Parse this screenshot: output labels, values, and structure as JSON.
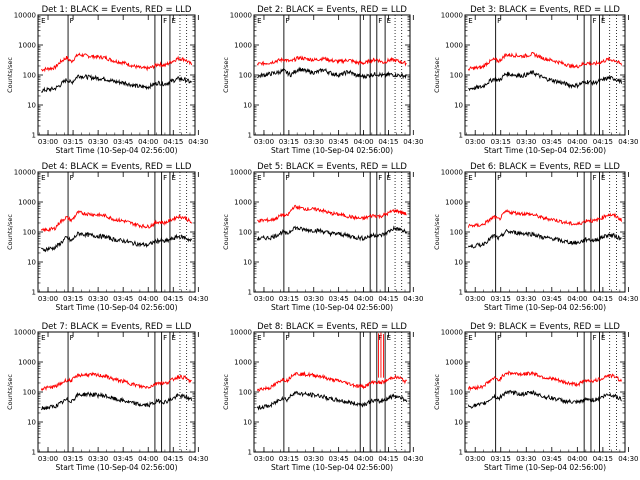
{
  "x_tick_labels": [
    "03:00",
    "03:15",
    "03:30",
    "03:45",
    "04:00",
    "04:15",
    "04:30"
  ],
  "y_tick_labels": [
    "1",
    "10",
    "100",
    "1000",
    "10000"
  ],
  "xlabel": "Start Time (10-Sep-04 02:56:00)",
  "ylabel": "Counts/sec",
  "colors": {
    "events": "#000000",
    "lld": "#ff0000"
  },
  "chart_data": [
    {
      "type": "line",
      "title": "Det 1: BLACK = Events, RED = LLD",
      "xlim_min": [
        -2,
        92
      ],
      "ylim": [
        1,
        10000
      ],
      "yscale": "log",
      "events_series": {
        "x": [
          0,
          8,
          11,
          15,
          18,
          22,
          28,
          32,
          38,
          44,
          50,
          55,
          60,
          64,
          67,
          70,
          74,
          78,
          82,
          86,
          90
        ],
        "y": [
          30,
          35,
          45,
          70,
          55,
          95,
          85,
          80,
          75,
          60,
          55,
          45,
          40,
          40,
          48,
          55,
          50,
          62,
          75,
          70,
          55
        ]
      },
      "lld_series": {
        "x": [
          0,
          8,
          11,
          15,
          18,
          22,
          28,
          32,
          38,
          44,
          50,
          55,
          60,
          64,
          67,
          70,
          74,
          78,
          82,
          86,
          90
        ],
        "y": [
          150,
          175,
          260,
          380,
          280,
          480,
          430,
          410,
          380,
          290,
          250,
          200,
          170,
          165,
          190,
          230,
          210,
          280,
          360,
          330,
          220
        ]
      },
      "vlines_solid": [
        16,
        68,
        72,
        77
      ],
      "vlines_dotted": [
        83,
        87
      ],
      "markers": [
        [
          "E",
          -1
        ],
        [
          "F",
          16
        ],
        [
          "F",
          72
        ],
        [
          "E",
          77
        ]
      ]
    },
    {
      "type": "line",
      "title": "Det 2: BLACK = Events, RED = LLD",
      "xlim_min": [
        -2,
        92
      ],
      "ylim": [
        1,
        10000
      ],
      "yscale": "log",
      "events_series": {
        "x": [
          0,
          8,
          12,
          16,
          20,
          25,
          30,
          35,
          40,
          45,
          50,
          55,
          60,
          65,
          68,
          72,
          76,
          80,
          84,
          88,
          90
        ],
        "y": [
          90,
          110,
          120,
          140,
          100,
          160,
          130,
          120,
          150,
          110,
          100,
          130,
          95,
          90,
          100,
          110,
          95,
          105,
          100,
          95,
          90
        ]
      },
      "lld_series": {
        "x": [
          0,
          8,
          12,
          16,
          20,
          25,
          30,
          35,
          40,
          45,
          50,
          55,
          60,
          65,
          68,
          72,
          76,
          80,
          84,
          88,
          90
        ],
        "y": [
          230,
          260,
          300,
          330,
          280,
          380,
          340,
          320,
          360,
          300,
          280,
          320,
          260,
          250,
          300,
          330,
          260,
          320,
          300,
          260,
          240
        ]
      },
      "vlines_solid": [
        16,
        62,
        68,
        72,
        77
      ],
      "vlines_dotted": [
        83,
        87
      ],
      "markers": [
        [
          "E",
          -1
        ],
        [
          "F",
          16
        ],
        [
          "F",
          72
        ],
        [
          "E",
          77
        ]
      ]
    },
    {
      "type": "line",
      "title": "Det 3: BLACK = Events, RED = LLD",
      "xlim_min": [
        -2,
        92
      ],
      "ylim": [
        1,
        10000
      ],
      "yscale": "log",
      "events_series": {
        "x": [
          0,
          8,
          11,
          15,
          18,
          22,
          28,
          32,
          38,
          44,
          50,
          55,
          60,
          64,
          67,
          70,
          74,
          78,
          82,
          86,
          90
        ],
        "y": [
          35,
          40,
          55,
          75,
          65,
          110,
          100,
          95,
          120,
          80,
          65,
          55,
          45,
          45,
          55,
          60,
          55,
          65,
          80,
          75,
          60
        ]
      },
      "lld_series": {
        "x": [
          0,
          8,
          11,
          15,
          18,
          22,
          28,
          32,
          38,
          44,
          50,
          55,
          60,
          64,
          67,
          70,
          74,
          78,
          82,
          86,
          90
        ],
        "y": [
          160,
          180,
          250,
          330,
          290,
          470,
          450,
          420,
          500,
          360,
          300,
          250,
          200,
          190,
          230,
          250,
          230,
          270,
          330,
          310,
          220
        ]
      },
      "vlines_solid": [
        16,
        68,
        72,
        77
      ],
      "vlines_dotted": [
        83,
        87
      ],
      "markers": [
        [
          "E",
          -1
        ],
        [
          "F",
          16
        ],
        [
          "F",
          72
        ],
        [
          "E",
          77
        ]
      ]
    },
    {
      "type": "line",
      "title": "Det 4: BLACK = Events, RED = LLD",
      "xlim_min": [
        -2,
        92
      ],
      "ylim": [
        1,
        10000
      ],
      "yscale": "log",
      "events_series": {
        "x": [
          0,
          8,
          11,
          15,
          18,
          22,
          28,
          32,
          38,
          44,
          50,
          55,
          60,
          64,
          67,
          70,
          74,
          78,
          82,
          86,
          90
        ],
        "y": [
          25,
          30,
          40,
          65,
          50,
          90,
          80,
          75,
          70,
          55,
          50,
          42,
          38,
          37,
          45,
          52,
          48,
          58,
          70,
          65,
          50
        ]
      },
      "lld_series": {
        "x": [
          0,
          8,
          11,
          15,
          18,
          22,
          28,
          32,
          38,
          44,
          50,
          55,
          60,
          64,
          67,
          70,
          74,
          78,
          82,
          86,
          90
        ],
        "y": [
          110,
          130,
          210,
          310,
          240,
          450,
          400,
          380,
          350,
          260,
          230,
          190,
          160,
          150,
          180,
          220,
          200,
          260,
          330,
          300,
          200
        ]
      },
      "vlines_solid": [
        16,
        68,
        72,
        77
      ],
      "vlines_dotted": [
        83,
        87
      ],
      "markers": [
        [
          "E",
          -1
        ],
        [
          "F",
          16
        ],
        [
          "F",
          72
        ],
        [
          "E",
          77
        ]
      ]
    },
    {
      "type": "line",
      "title": "Det 5: BLACK = Events, RED = LLD",
      "xlim_min": [
        -2,
        92
      ],
      "ylim": [
        1,
        10000
      ],
      "yscale": "log",
      "events_series": {
        "x": [
          0,
          8,
          11,
          15,
          18,
          22,
          28,
          32,
          38,
          44,
          50,
          55,
          60,
          64,
          67,
          70,
          74,
          78,
          82,
          86,
          90
        ],
        "y": [
          60,
          65,
          75,
          100,
          85,
          140,
          120,
          115,
          110,
          90,
          85,
          75,
          65,
          62,
          70,
          80,
          75,
          95,
          130,
          120,
          95
        ]
      },
      "lld_series": {
        "x": [
          0,
          8,
          11,
          15,
          18,
          22,
          28,
          32,
          38,
          44,
          50,
          55,
          60,
          64,
          67,
          70,
          74,
          78,
          82,
          86,
          90
        ],
        "y": [
          240,
          250,
          280,
          380,
          340,
          700,
          600,
          580,
          550,
          420,
          380,
          330,
          290,
          280,
          320,
          360,
          330,
          400,
          520,
          480,
          380
        ]
      },
      "vlines_solid": [
        16,
        68,
        72,
        77
      ],
      "vlines_dotted": [
        83,
        87
      ],
      "markers": [
        [
          "E",
          -1
        ],
        [
          "F",
          16
        ],
        [
          "F",
          72
        ],
        [
          "E",
          77
        ]
      ]
    },
    {
      "type": "line",
      "title": "Det 6: BLACK = Events, RED = LLD",
      "xlim_min": [
        -2,
        92
      ],
      "ylim": [
        1,
        10000
      ],
      "yscale": "log",
      "events_series": {
        "x": [
          0,
          8,
          11,
          15,
          18,
          22,
          28,
          32,
          38,
          44,
          50,
          55,
          60,
          64,
          67,
          70,
          74,
          78,
          82,
          86,
          90
        ],
        "y": [
          32,
          38,
          50,
          75,
          60,
          105,
          95,
          90,
          85,
          65,
          60,
          50,
          45,
          43,
          50,
          58,
          52,
          65,
          80,
          75,
          58
        ]
      },
      "lld_series": {
        "x": [
          0,
          8,
          11,
          15,
          18,
          22,
          28,
          32,
          38,
          44,
          50,
          55,
          60,
          64,
          67,
          70,
          74,
          78,
          82,
          86,
          90
        ],
        "y": [
          160,
          170,
          220,
          320,
          260,
          480,
          430,
          410,
          380,
          290,
          260,
          220,
          190,
          180,
          210,
          250,
          230,
          290,
          380,
          350,
          250
        ]
      },
      "vlines_solid": [
        16,
        68,
        72,
        77
      ],
      "vlines_dotted": [
        83,
        87
      ],
      "markers": [
        [
          "E",
          -1
        ],
        [
          "F",
          16
        ],
        [
          "F",
          72
        ],
        [
          "E",
          77
        ]
      ]
    },
    {
      "type": "line",
      "title": "Det 7: BLACK = Events, RED = LLD",
      "xlim_min": [
        -2,
        92
      ],
      "ylim": [
        1,
        10000
      ],
      "yscale": "log",
      "events_series": {
        "x": [
          0,
          8,
          11,
          15,
          18,
          22,
          28,
          32,
          38,
          44,
          50,
          55,
          60,
          64,
          67,
          70,
          74,
          78,
          82,
          86,
          90
        ],
        "y": [
          28,
          33,
          40,
          55,
          50,
          80,
          85,
          80,
          75,
          58,
          50,
          42,
          37,
          36,
          42,
          50,
          46,
          58,
          75,
          70,
          55
        ]
      },
      "lld_series": {
        "x": [
          0,
          8,
          11,
          15,
          18,
          22,
          28,
          32,
          38,
          44,
          50,
          55,
          60,
          64,
          67,
          70,
          74,
          78,
          82,
          86,
          90
        ],
        "y": [
          130,
          150,
          180,
          250,
          240,
          360,
          380,
          370,
          340,
          260,
          220,
          180,
          150,
          145,
          170,
          210,
          190,
          250,
          330,
          300,
          210
        ]
      },
      "vlines_solid": [
        16,
        68,
        72,
        77
      ],
      "vlines_dotted": [
        83,
        87
      ],
      "markers": [
        [
          "E",
          -1
        ],
        [
          "F",
          16
        ],
        [
          "F",
          72
        ],
        [
          "E",
          77
        ]
      ]
    },
    {
      "type": "line",
      "title": "Det 8: BLACK = Events, RED = LLD",
      "xlim_min": [
        -2,
        92
      ],
      "ylim": [
        1,
        10000
      ],
      "yscale": "log",
      "events_series": {
        "x": [
          0,
          8,
          11,
          15,
          18,
          22,
          28,
          32,
          38,
          44,
          50,
          55,
          60,
          64,
          67,
          70,
          74,
          78,
          82,
          86,
          90
        ],
        "y": [
          30,
          35,
          45,
          65,
          55,
          95,
          85,
          80,
          75,
          58,
          52,
          45,
          40,
          38,
          45,
          52,
          48,
          60,
          75,
          68,
          52
        ]
      },
      "lld_series": {
        "x": [
          0,
          8,
          11,
          15,
          18,
          22,
          28,
          32,
          38,
          44,
          50,
          55,
          60,
          64,
          67,
          70,
          74,
          78,
          82,
          86,
          90
        ],
        "y": [
          120,
          140,
          180,
          270,
          240,
          420,
          390,
          370,
          340,
          260,
          230,
          190,
          160,
          150,
          180,
          220,
          200,
          240,
          320,
          290,
          210
        ]
      },
      "vlines_solid": [
        16,
        62,
        68,
        72,
        77
      ],
      "vlines_dotted": [
        83,
        87
      ],
      "markers": [
        [
          "E",
          -1
        ],
        [
          "F",
          16
        ],
        [
          "F",
          72
        ],
        [
          "E",
          77
        ]
      ],
      "lld_spikes": [
        [
          73,
          9000
        ],
        [
          74.5,
          9500
        ],
        [
          76,
          8500
        ]
      ]
    },
    {
      "type": "line",
      "title": "Det 9: BLACK = Events, RED = LLD",
      "xlim_min": [
        -2,
        92
      ],
      "ylim": [
        1,
        10000
      ],
      "yscale": "log",
      "events_series": {
        "x": [
          0,
          8,
          11,
          15,
          18,
          22,
          28,
          32,
          38,
          44,
          50,
          55,
          60,
          64,
          67,
          70,
          74,
          78,
          82,
          86,
          90
        ],
        "y": [
          33,
          38,
          48,
          72,
          60,
          100,
          90,
          85,
          95,
          70,
          62,
          52,
          46,
          44,
          50,
          58,
          54,
          66,
          82,
          76,
          58
        ]
      },
      "lld_series": {
        "x": [
          0,
          8,
          11,
          15,
          18,
          22,
          28,
          32,
          38,
          44,
          50,
          55,
          60,
          64,
          67,
          70,
          74,
          78,
          82,
          86,
          90
        ],
        "y": [
          130,
          150,
          200,
          290,
          250,
          440,
          410,
          390,
          430,
          310,
          270,
          220,
          190,
          180,
          210,
          250,
          230,
          280,
          360,
          330,
          230
        ]
      },
      "vlines_solid": [
        16,
        68,
        72,
        77
      ],
      "vlines_dotted": [
        83,
        87
      ],
      "markers": [
        [
          "E",
          -1
        ],
        [
          "F",
          16
        ],
        [
          "F",
          72
        ],
        [
          "E",
          77
        ]
      ]
    }
  ]
}
